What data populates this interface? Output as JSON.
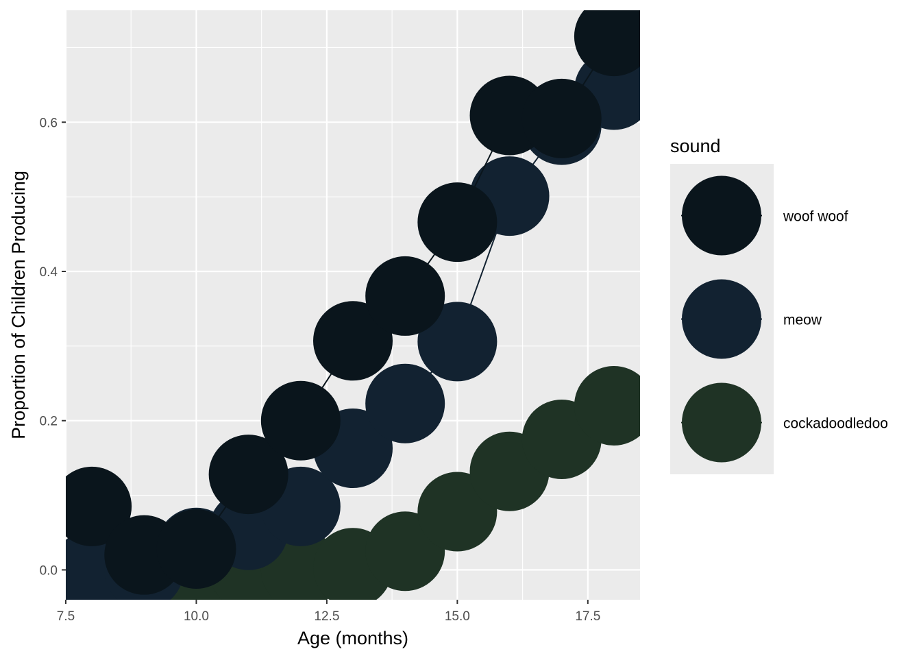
{
  "chart_data": {
    "type": "scatter",
    "xlabel": "Age (months)",
    "ylabel": "Proportion of Children Producing",
    "xlim": [
      7.5,
      18.5
    ],
    "ylim": [
      -0.04,
      0.75
    ],
    "x_ticks": [
      7.5,
      10.0,
      12.5,
      15.0,
      17.5
    ],
    "x_tick_labels": [
      "7.5",
      "10.0",
      "12.5",
      "15.0",
      "17.5"
    ],
    "y_ticks": [
      0.0,
      0.2,
      0.4,
      0.6
    ],
    "y_tick_labels": [
      "0.0",
      "0.2",
      "0.4",
      "0.6"
    ],
    "grid": true,
    "lines_connect_points": true,
    "legend": {
      "title": "sound",
      "position": "right"
    },
    "x": [
      8,
      9,
      10,
      11,
      12,
      13,
      14,
      15,
      16,
      17,
      18
    ],
    "series": [
      {
        "name": "woof woof",
        "color": "#0a151c",
        "values": [
          0.085,
          0.02,
          0.028,
          0.128,
          0.2,
          0.307,
          0.367,
          0.466,
          0.609,
          0.605,
          0.715
        ]
      },
      {
        "name": "meow",
        "color": "#122231",
        "values": [
          0.0,
          0.0,
          0.03,
          0.053,
          0.085,
          0.163,
          0.223,
          0.306,
          0.501,
          0.596,
          0.643
        ]
      },
      {
        "name": "cockadoodledoo",
        "color": "#1f3325",
        "values": [
          0.0,
          0.0,
          0.0,
          0.0,
          0.0,
          0.003,
          0.025,
          0.078,
          0.132,
          0.175,
          0.22
        ]
      }
    ]
  }
}
